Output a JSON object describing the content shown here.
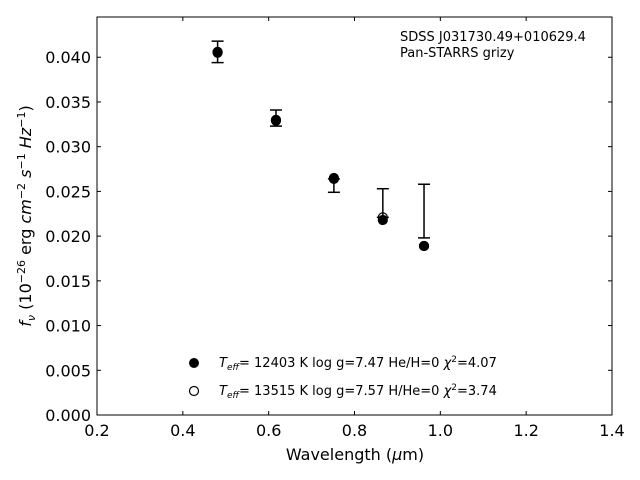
{
  "chart_data": {
    "type": "scatter",
    "xlabel": "Wavelength (μm)",
    "ylabel": "f_ν (10^-26 erg cm^-2 s^-1 Hz^-1)",
    "xlim": [
      0.2,
      1.4
    ],
    "ylim": [
      0.0,
      0.0445
    ],
    "xticks": [
      "0.2",
      "0.4",
      "0.6",
      "0.8",
      "1.0",
      "1.2",
      "1.4"
    ],
    "yticks": [
      "0.000",
      "0.005",
      "0.010",
      "0.015",
      "0.020",
      "0.025",
      "0.030",
      "0.035",
      "0.040"
    ],
    "annotation": [
      "SDSS J031730.49+010629.4",
      "Pan-STARRS grizy"
    ],
    "observed": {
      "x": [
        0.481,
        0.617,
        0.752,
        0.866,
        0.962
      ],
      "y": [
        0.0406,
        0.0332,
        0.0264,
        0.0221,
        0.0228
      ],
      "yerr_low": [
        0.0012,
        0.0009,
        0.0015,
        0.0,
        0.003
      ],
      "yerr_high": [
        0.0012,
        0.0009,
        0.0,
        0.0032,
        0.003
      ]
    },
    "series": [
      {
        "name": "T_eff= 12403 K  log g=7.47  He/H=0  χ²=4.07",
        "marker": "filled",
        "x": [
          0.481,
          0.617,
          0.752,
          0.866,
          0.962
        ],
        "y": [
          0.0405,
          0.0329,
          0.0264,
          0.0218,
          0.0189
        ]
      },
      {
        "name": "T_eff= 13515 K  log g=7.57  H/He=0  χ²=3.74",
        "marker": "open",
        "x": [
          0.481,
          0.617,
          0.752,
          0.866,
          0.962
        ],
        "y": [
          0.0406,
          0.033,
          0.0265,
          0.0221,
          0.0189
        ]
      }
    ],
    "legend_position": "bottom-center",
    "grid": false
  }
}
